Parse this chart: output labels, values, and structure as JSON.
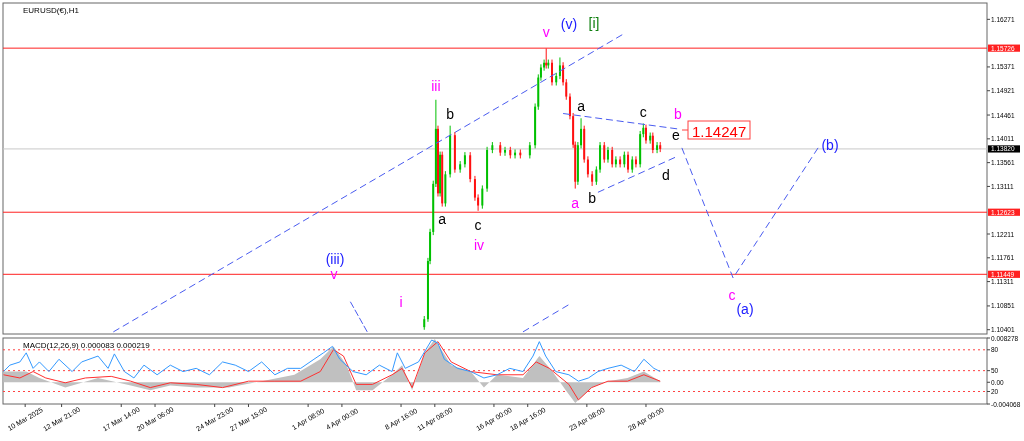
{
  "chart_data": [
    {
      "type": "candlestick",
      "title": "EURUSD(€),H1",
      "tick_labels": "y",
      "grid": false,
      "xlim": [
        "2025-03-08T06:00",
        "2025-05-24T22:00"
      ],
      "ylim": [
        1.1032,
        1.1658
      ],
      "yticks": [
        1.10401,
        1.10851,
        1.11311,
        1.11761,
        1.12211,
        1.13111,
        1.13561,
        1.14011,
        1.14461,
        1.14921,
        1.15371,
        1.16271
      ],
      "x": [
        "2025-04-10T12:00",
        "2025-04-10T19:00",
        "2025-04-10T23:00",
        "2025-04-11T05:00",
        "2025-04-11T10:00",
        "2025-04-11T14:00",
        "2025-04-11T18:00",
        "2025-04-11T22:00",
        "2025-04-12T04:00",
        "2025-04-12T13:00",
        "2025-04-12T22:00",
        "2025-04-13T08:00",
        "2025-04-13T17:00",
        "2025-04-14T03:00",
        "2025-04-14T12:00",
        "2025-04-14T18:00",
        "2025-04-15T02:00",
        "2025-04-15T11:00",
        "2025-04-15T21:00",
        "2025-04-16T12:00",
        "2025-04-16T21:00",
        "2025-04-17T07:00",
        "2025-04-17T16:00",
        "2025-04-18T02:00",
        "2025-04-18T20:00",
        "2025-04-19T06:00",
        "2025-04-19T12:00",
        "2025-04-19T17:00",
        "2025-04-19T23:00",
        "2025-04-20T03:00",
        "2025-04-20T07:00",
        "2025-04-20T14:00",
        "2025-04-20T22:00",
        "2025-04-21T05:00",
        "2025-04-21T11:00",
        "2025-04-21T17:00",
        "2025-04-22T00:00",
        "2025-04-22T06:00",
        "2025-04-22T10:00",
        "2025-04-22T15:00",
        "2025-04-22T21:00",
        "2025-04-23T03:00",
        "2025-04-23T10:00",
        "2025-04-23T18:00",
        "2025-04-24T02:00",
        "2025-04-24T09:00",
        "2025-04-24T17:00",
        "2025-04-25T00:00",
        "2025-04-25T08:00",
        "2025-04-25T15:00",
        "2025-04-25T23:00",
        "2025-04-26T07:00",
        "2025-04-26T14:00",
        "2025-04-26T22:00",
        "2025-04-27T05:00",
        "2025-04-27T13:00",
        "2025-04-27T19:00",
        "2025-04-28T00:00",
        "2025-04-28T08:00",
        "2025-04-28T13:00",
        "2025-04-28T21:00",
        "2025-04-29T03:00"
      ],
      "ohlc": [
        [
          1.1045,
          1.1066,
          1.104,
          1.106
        ],
        [
          1.106,
          1.1176,
          1.1055,
          1.117
        ],
        [
          1.117,
          1.1231,
          1.1164,
          1.1225
        ],
        [
          1.1225,
          1.1322,
          1.1219,
          1.1316
        ],
        [
          1.1316,
          1.1475,
          1.131,
          1.142
        ],
        [
          1.142,
          1.1426,
          1.1292,
          1.1298
        ],
        [
          1.1298,
          1.1377,
          1.1292,
          1.1371
        ],
        [
          1.1371,
          1.1377,
          1.1273,
          1.1279
        ],
        [
          1.1279,
          1.134,
          1.1273,
          1.1334
        ],
        [
          1.1334,
          1.1426,
          1.1328,
          1.1408
        ],
        [
          1.1408,
          1.1414,
          1.1337,
          1.1343
        ],
        [
          1.1343,
          1.1359,
          1.1337,
          1.1353
        ],
        [
          1.1353,
          1.1376,
          1.1347,
          1.137
        ],
        [
          1.137,
          1.1376,
          1.1319,
          1.1325
        ],
        [
          1.1325,
          1.1331,
          1.1284,
          1.129
        ],
        [
          1.129,
          1.1296,
          1.1265,
          1.1275
        ],
        [
          1.1275,
          1.1313,
          1.1269,
          1.1307
        ],
        [
          1.1307,
          1.1386,
          1.1301,
          1.138
        ],
        [
          1.138,
          1.1395,
          1.1374,
          1.1389
        ],
        [
          1.1389,
          1.1395,
          1.1369,
          1.1375
        ],
        [
          1.1375,
          1.1386,
          1.1369,
          1.138
        ],
        [
          1.138,
          1.1386,
          1.1364,
          1.137
        ],
        [
          1.137,
          1.1381,
          1.1364,
          1.1375
        ],
        [
          1.1375,
          1.1381,
          1.1364,
          1.137
        ],
        [
          1.137,
          1.1395,
          1.1364,
          1.1389
        ],
        [
          1.1389,
          1.1468,
          1.1383,
          1.1462
        ],
        [
          1.1462,
          1.1523,
          1.1456,
          1.1517
        ],
        [
          1.1517,
          1.1542,
          1.1511,
          1.1536
        ],
        [
          1.1536,
          1.1551,
          1.153,
          1.1545
        ],
        [
          1.1545,
          1.1572,
          1.1534,
          1.154
        ],
        [
          1.154,
          1.1551,
          1.1534,
          1.1545
        ],
        [
          1.1545,
          1.1551,
          1.1502,
          1.1508
        ],
        [
          1.1508,
          1.1526,
          1.1502,
          1.152
        ],
        [
          1.152,
          1.1555,
          1.1514,
          1.154
        ],
        [
          1.154,
          1.1546,
          1.1502,
          1.1508
        ],
        [
          1.1508,
          1.1514,
          1.1475,
          1.1481
        ],
        [
          1.1481,
          1.1487,
          1.1438,
          1.1444
        ],
        [
          1.1444,
          1.145,
          1.1384,
          1.139
        ],
        [
          1.139,
          1.1396,
          1.1307,
          1.132
        ],
        [
          1.132,
          1.1395,
          1.1314,
          1.1389
        ],
        [
          1.1389,
          1.144,
          1.1383,
          1.142
        ],
        [
          1.142,
          1.1426,
          1.1356,
          1.1362
        ],
        [
          1.1362,
          1.1368,
          1.1328,
          1.1334
        ],
        [
          1.1334,
          1.134,
          1.1312,
          1.132
        ],
        [
          1.132,
          1.1349,
          1.1314,
          1.1343
        ],
        [
          1.1343,
          1.1395,
          1.1337,
          1.1389
        ],
        [
          1.1389,
          1.1395,
          1.1356,
          1.1362
        ],
        [
          1.1362,
          1.1386,
          1.1356,
          1.138
        ],
        [
          1.138,
          1.1386,
          1.1347,
          1.1353
        ],
        [
          1.1353,
          1.1368,
          1.1347,
          1.1362
        ],
        [
          1.1362,
          1.1368,
          1.1347,
          1.1353
        ],
        [
          1.1353,
          1.1377,
          1.1347,
          1.1371
        ],
        [
          1.1371,
          1.1377,
          1.1337,
          1.1343
        ],
        [
          1.1343,
          1.1368,
          1.1337,
          1.1362
        ],
        [
          1.1362,
          1.1368,
          1.1347,
          1.1353
        ],
        [
          1.1353,
          1.1416,
          1.1347,
          1.141
        ],
        [
          1.141,
          1.143,
          1.1404,
          1.1422
        ],
        [
          1.1422,
          1.1428,
          1.1392,
          1.1398
        ],
        [
          1.1398,
          1.1413,
          1.1392,
          1.1407
        ],
        [
          1.1407,
          1.1413,
          1.1374,
          1.138
        ],
        [
          1.138,
          1.1395,
          1.1374,
          1.1389
        ],
        [
          1.1389,
          1.1395,
          1.1376,
          1.1382
        ]
      ],
      "series": [
        {
          "type": "line",
          "color": "#4a5cf0",
          "line_style": "dashed",
          "x": [
            "2025-03-16T23:00",
            "2025-04-26T03:00"
          ],
          "values": [
            1.1036,
            1.1598
          ]
        },
        {
          "type": "line",
          "color": "#4a5cf0",
          "line_style": "dashed",
          "x": [
            "2025-04-18T07:00",
            "2025-04-21T21:00"
          ],
          "values": [
            1.1036,
            1.1087
          ]
        },
        {
          "type": "line",
          "color": "#4a5cf0",
          "line_style": "dashed",
          "x": [
            "2025-04-21T11:00",
            "2025-04-30T11:00"
          ],
          "values": [
            1.1449,
            1.142
          ]
        },
        {
          "type": "line",
          "color": "#4a5cf0",
          "line_style": "dashed",
          "x": [
            "2025-04-24T05:00",
            "2025-04-30T07:00"
          ],
          "values": [
            1.13,
            1.1366
          ]
        },
        {
          "type": "line",
          "color": "#4a5cf0",
          "line_style": "dashed",
          "x": [
            "2025-04-30T20:00",
            "2025-05-04T21:00",
            "2025-05-11T14:00"
          ],
          "values": [
            1.1384,
            1.1138,
            1.1384
          ]
        },
        {
          "type": "line",
          "color": "#4a5cf0",
          "line_style": "dashed",
          "x": [
            "2025-04-04T16:00",
            "2025-04-06T00:00"
          ],
          "values": [
            1.1093,
            1.1036
          ]
        }
      ],
      "ref_lines": [
        {
          "axis": "y",
          "value": 1.15726,
          "label": "1.15726",
          "color": "#ff2020",
          "line_style": "solid"
        },
        {
          "axis": "y",
          "value": 1.12623,
          "label": "1.12623",
          "color": "#ff2020",
          "line_style": "solid"
        },
        {
          "axis": "y",
          "value": 1.11449,
          "label": "1.11449",
          "color": "#ff2020",
          "line_style": "solid"
        },
        {
          "axis": "y",
          "value": 1.1382,
          "label": "1.13820",
          "color": "#c8c8c8",
          "line_style": "solid"
        }
      ],
      "annotations": [
        {
          "text": "v",
          "x": "2025-04-20T03:00",
          "y": 1.1572
        },
        "(v)",
        "[i]",
        {
          "text": "iii",
          "x": "2025-04-11T10:00",
          "y": 1.1475
        },
        {
          "text": "b",
          "x": "2025-04-12T13:00",
          "y": 1.1426
        },
        {
          "text": "a",
          "x": "2025-04-11T22:00",
          "y": 1.1273
        },
        {
          "text": "c",
          "x": "2025-04-14T18:00",
          "y": 1.1265
        },
        "iv",
        "(iii)",
        "v",
        "i",
        {
          "text": "a",
          "x": "2025-04-22T10:00",
          "y": 1.1307
        },
        {
          "text": "a",
          "x": "2025-04-22T21:00",
          "y": 1.144
        },
        {
          "text": "c",
          "x": "2025-04-27T19:00",
          "y": 1.143
        },
        "b",
        "e",
        "d",
        {
          "text": "b",
          "x": "2025-04-23T18:00",
          "y": 1.1312
        },
        "c",
        "(a)",
        "(b)",
        "1.14247"
      ]
    },
    {
      "type": "line",
      "title": "MACD(12,26,9) 0.000083 0.000219",
      "grid": false,
      "xlim": [
        "2025-03-08T06:00",
        "2025-05-24T22:00"
      ],
      "ylim": [
        -0.004068,
        0.008278
      ],
      "yticks": [
        0.008278,
        {
          "value": 0,
          "label": "0.00"
        },
        -0.004068
      ],
      "y2lim": [
        2,
        97
      ],
      "y2ticks": [
        80,
        50,
        20
      ],
      "xticks": [
        {
          "value": "2025-03-10T00:00",
          "label": "10 Mar 2025"
        },
        {
          "value": "2025-03-12T21:00",
          "label": "12 Mar 21:00"
        },
        {
          "value": "2025-03-17T14:00",
          "label": "17 Mar 14:00"
        },
        {
          "value": "2025-03-20T06:00",
          "label": "20 Mar 06:00"
        },
        {
          "value": "2025-03-24T23:00",
          "label": "24 Mar 23:00"
        },
        {
          "value": "2025-03-27T15:00",
          "label": "27 Mar 15:00"
        },
        {
          "value": "2025-04-01T08:00",
          "label": "1 Apr 08:00"
        },
        {
          "value": "2025-04-04T00:00",
          "label": "4 Apr 00:00"
        },
        {
          "value": "2025-04-08T16:00",
          "label": "8 Apr 16:00"
        },
        {
          "value": "2025-04-11T08:00",
          "label": "11 Apr 08:00"
        },
        {
          "value": "2025-04-16T00:00",
          "label": "16 Apr 00:00"
        },
        {
          "value": "2025-04-18T16:00",
          "label": "18 Apr 16:00"
        },
        {
          "value": "2025-04-23T08:00",
          "label": "23 Apr 08:00"
        },
        {
          "value": "2025-04-28T00:00",
          "label": "28 Apr 00:00"
        }
      ],
      "ref_lines": [
        {
          "axis": "y2",
          "value": 80,
          "color": "#ff4040",
          "line_style": "dotted"
        },
        {
          "axis": "y2",
          "value": 50,
          "color": "#ff4040",
          "line_style": "dotted"
        },
        {
          "axis": "y2",
          "value": 20,
          "color": "#ff4040",
          "line_style": "dotted"
        }
      ],
      "series": [
        {
          "type": "area",
          "color": "#c0c0c0",
          "x": [
            "2025-03-08T07:00",
            "2025-03-10T02:00",
            "2025-03-11T03:00",
            "2025-03-13T04:00",
            "2025-03-15T18:00",
            "2025-03-18T08:00",
            "2025-03-19T21:00",
            "2025-03-21T11:00",
            "2025-03-23T12:00",
            "2025-03-26T02:00",
            "2025-03-28T16:00",
            "2025-03-31T06:00",
            "2025-04-02T07:00",
            "2025-04-03T08:00",
            "2025-04-04T09:00",
            "2025-04-05T03:00",
            "2025-04-06T10:00",
            "2025-04-07T23:00",
            "2025-04-08T18:00",
            "2025-04-09T13:00",
            "2025-04-10T13:00",
            "2025-04-11T08:00",
            "2025-04-12T15:00",
            "2025-04-14T04:00",
            "2025-04-15T05:00",
            "2025-04-16T06:00",
            "2025-04-18T07:00",
            "2025-04-19T14:00",
            "2025-04-20T15:00",
            "2025-04-21T16:00",
            "2025-04-22T10:00",
            "2025-04-23T17:00",
            "2025-04-25T00:00",
            "2025-04-26T13:00",
            "2025-04-27T20:00",
            "2025-04-29T03:00"
          ],
          "values": [
            0.002,
            0.002,
            0.0008,
            -0.001,
            0.0008,
            -0.0006,
            -0.0015,
            -0.0006,
            -0.001,
            -0.001,
            0.0002,
            0.0014,
            0.0043,
            0.0067,
            0.0032,
            -0.0015,
            -0.0015,
            0.0014,
            0.0032,
            -0.0015,
            0.0055,
            0.0081,
            0.0032,
            0.002,
            -0.001,
            0.0014,
            0.0008,
            0.0049,
            0.002,
            -0.0015,
            -0.0039,
            -0.001,
            0.0002,
            0.0008,
            0.002,
            0.0002
          ]
        },
        {
          "type": "line",
          "color": "#ff3030",
          "x": [
            "2025-03-08T07:00",
            "2025-03-09T14:00",
            "2025-03-10T15:00",
            "2025-03-11T15:00",
            "2025-03-13T04:00",
            "2025-03-14T18:00",
            "2025-03-16T19:00",
            "2025-03-18T08:00",
            "2025-03-19T21:00",
            "2025-03-21T11:00",
            "2025-03-23T12:00",
            "2025-03-25T14:00",
            "2025-03-27T15:00",
            "2025-03-29T17:00",
            "2025-03-31T18:00",
            "2025-04-02T07:00",
            "2025-04-03T08:00",
            "2025-04-04T03:00",
            "2025-04-05T03:00",
            "2025-04-06T10:00",
            "2025-04-07T23:00",
            "2025-04-08T18:00",
            "2025-04-09T13:00",
            "2025-04-10T13:00",
            "2025-04-11T14:00",
            "2025-04-12T15:00",
            "2025-04-14T04:00",
            "2025-04-16T06:00",
            "2025-04-18T07:00",
            "2025-04-19T08:00",
            "2025-04-20T09:00",
            "2025-04-21T22:00",
            "2025-04-22T16:00",
            "2025-04-23T17:00",
            "2025-04-25T00:00",
            "2025-04-26T13:00",
            "2025-04-27T20:00",
            "2025-04-29T03:00"
          ],
          "values": [
            0.0014,
            0.0008,
            0.002,
            0.0008,
            -0.0001,
            0.0008,
            0.0011,
            0.0002,
            -0.001,
            -0.0001,
            -0.0004,
            -0.001,
            0.0002,
            0.0002,
            0.0002,
            0.002,
            0.0061,
            0.0049,
            -0.0004,
            -0.0004,
            0.0014,
            0.0026,
            -0.001,
            0.0055,
            0.0076,
            0.0038,
            0.002,
            0.0014,
            0.0014,
            0.0038,
            0.0026,
            -0.0004,
            -0.0033,
            -0.001,
            0.0002,
            0.0002,
            0.0014,
            0.0002
          ]
        },
        {
          "type": "line",
          "color": "#3399ff",
          "x": [
            "2025-03-08T07:00",
            "2025-03-08T19:00",
            "2025-03-09T14:00",
            "2025-03-10T02:00",
            "2025-03-10T15:00",
            "2025-03-11T03:00",
            "2025-03-11T21:00",
            "2025-03-12T16:00",
            "2025-03-13T17:00",
            "2025-03-14T11:00",
            "2025-03-15T18:00",
            "2025-03-16T13:00",
            "2025-03-17T01:00",
            "2025-03-17T20:00",
            "2025-03-18T14:00",
            "2025-03-19T09:00",
            "2025-03-20T10:00",
            "2025-03-21T11:00",
            "2025-03-22T11:00",
            "2025-03-23T12:00",
            "2025-03-24T13:00",
            "2025-03-25T14:00",
            "2025-03-26T14:00",
            "2025-03-27T15:00",
            "2025-03-28T16:00",
            "2025-03-29T17:00",
            "2025-03-30T17:00",
            "2025-03-31T18:00",
            "2025-04-01T19:00",
            "2025-04-02T13:00",
            "2025-04-03T06:00",
            "2025-04-03T20:00",
            "2025-04-04T21:00",
            "2025-04-05T22:00",
            "2025-04-06T23:00",
            "2025-04-07T23:00",
            "2025-04-08T09:00",
            "2025-04-09T00:00",
            "2025-04-10T01:00",
            "2025-04-11T02:00",
            "2025-04-11T14:00",
            "2025-04-12T02:00",
            "2025-04-13T03:00",
            "2025-04-14T04:00",
            "2025-04-15T05:00",
            "2025-04-16T06:00",
            "2025-04-17T06:00",
            "2025-04-18T07:00",
            "2025-04-19T02:00",
            "2025-04-19T14:00",
            "2025-04-20T02:00",
            "2025-04-20T21:00",
            "2025-04-21T22:00",
            "2025-04-22T16:00",
            "2025-04-23T11:00",
            "2025-04-24T05:00",
            "2025-04-25T00:00",
            "2025-04-26T01:00",
            "2025-04-27T02:00",
            "2025-04-27T20:00",
            "2025-04-28T15:00",
            "2025-04-29T03:00"
          ],
          "values": [
            0.002,
            0.0032,
            0.0038,
            0.0055,
            0.0026,
            0.0038,
            0.002,
            0.0043,
            0.002,
            0.0038,
            0.0049,
            0.0026,
            0.0053,
            0.002,
            0.0008,
            0.0032,
            0.0014,
            0.0032,
            0.002,
            0.0026,
            0.0014,
            0.0038,
            0.0032,
            0.002,
            0.0038,
            0.0014,
            0.0026,
            0.0026,
            0.0043,
            0.0055,
            0.0067,
            0.0043,
            0.002,
            0.0014,
            0.0032,
            0.002,
            0.0055,
            0.0026,
            0.0038,
            0.0079,
            0.0073,
            0.0043,
            0.0026,
            0.002,
            0.0008,
            0.0014,
            0.0026,
            0.002,
            0.0049,
            0.0076,
            0.0049,
            0.002,
            0.0014,
            0.0002,
            0.0008,
            0.002,
            0.0026,
            0.0032,
            0.002,
            0.0043,
            0.0026,
            0.002
          ]
        }
      ]
    }
  ]
}
